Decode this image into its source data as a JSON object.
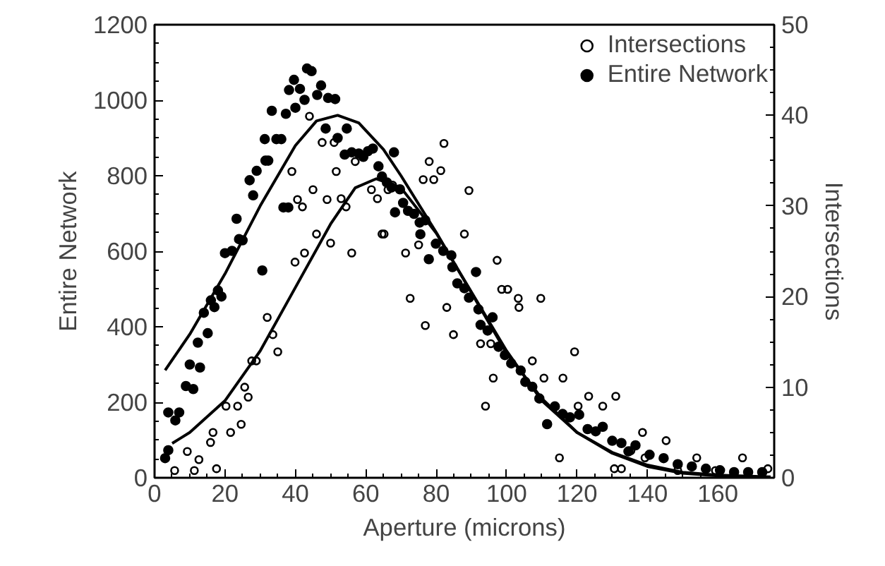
{
  "chart_data": {
    "type": "scatter",
    "xlabel": "Aperture (microns)",
    "ylabel": "Entire Network",
    "y2label": "Intersections",
    "xlim": [
      0,
      176
    ],
    "xticks": [
      0,
      20,
      40,
      60,
      80,
      100,
      120,
      140,
      160
    ],
    "ylim": [
      0,
      1200
    ],
    "yticks": [
      0,
      200,
      400,
      600,
      800,
      1000,
      1200
    ],
    "y2lim": [
      0,
      50
    ],
    "y2ticks": [
      0,
      10,
      20,
      30,
      40,
      50
    ],
    "grid": false,
    "legend": "top right",
    "marker": "circle",
    "series": [
      {
        "name": "Intersections",
        "color": "#000000",
        "axis": "y2",
        "marker": "circle_open",
        "x": [
          5.7,
          9.3,
          11.3,
          12.6,
          15.9,
          17.6,
          16.6,
          20.3,
          23.6,
          21.6,
          24.6,
          25.6,
          26.6,
          27.6,
          28.9,
          32,
          33.6,
          35,
          39.9,
          42.6,
          46,
          50,
          39,
          40.6,
          42,
          45,
          49,
          53,
          54.4,
          56,
          44,
          47.6,
          51,
          51.6,
          57,
          61.6,
          63.3,
          65.2,
          66.3,
          67.6,
          82.2,
          78,
          81.3,
          76.3,
          79.3,
          89.3,
          64.6,
          71.3,
          75,
          88,
          97.3,
          72.6,
          98.6,
          100.3,
          103.3,
          109.7,
          103.5,
          83,
          76.9,
          84.9,
          92.6,
          95.5,
          107.3,
          119.3,
          96.2,
          110.6,
          116,
          94,
          120.3,
          123.3,
          127.3,
          131,
          115,
          130.6,
          132.6,
          138.6,
          145.3,
          139.3,
          154,
          167,
          174.2,
          159.3,
          148.6,
          135.3
        ],
        "values": [
          0.8,
          2.9,
          0.8,
          2.0,
          3.9,
          1.0,
          5.0,
          7.9,
          7.9,
          5.0,
          5.9,
          10.0,
          8.9,
          12.9,
          12.9,
          17.7,
          15.8,
          13.9,
          23.8,
          24.8,
          26.9,
          25.9,
          33.8,
          30.7,
          29.9,
          31.8,
          30.7,
          30.8,
          29.9,
          24.8,
          39.9,
          37.0,
          37.0,
          33.8,
          34.9,
          31.8,
          30.8,
          26.9,
          31.8,
          32.3,
          36.9,
          34.9,
          33.9,
          32.9,
          32.9,
          31.7,
          26.9,
          24.8,
          25.7,
          26.9,
          24.0,
          19.8,
          20.8,
          20.8,
          19.8,
          19.8,
          18.8,
          18.8,
          16.8,
          15.8,
          14.8,
          14.8,
          12.9,
          13.9,
          11.0,
          11.0,
          11.0,
          7.9,
          7.9,
          9.0,
          7.9,
          9.0,
          2.2,
          1.0,
          1.0,
          5.0,
          4.1,
          2.2,
          2.2,
          2.2,
          1.0,
          0.8,
          0.8,
          3.0
        ]
      },
      {
        "name": "Entire Network",
        "color": "#000000",
        "axis": "y",
        "x": [
          3,
          3.9,
          3.9,
          5.9,
          7,
          8.9,
          11,
          10,
          12.9,
          12.3,
          15.1,
          14,
          17,
          16,
          18,
          19,
          20,
          22,
          24,
          25,
          23.3,
          28,
          29,
          27,
          30.6,
          31.5,
          32.3,
          31.3,
          34.6,
          36,
          33.3,
          37.3,
          38.2,
          40,
          41.3,
          42.6,
          39.6,
          43.3,
          44.6,
          46.2,
          47.3,
          49.3,
          51.3,
          36.6,
          38,
          48.6,
          54.6,
          52,
          54,
          56,
          58,
          59.3,
          60.6,
          62,
          63.6,
          64.6,
          66,
          68,
          68.3,
          67.3,
          69.7,
          70.6,
          72,
          73.7,
          75.3,
          75.5,
          76.9,
          77.9,
          79.9,
          82,
          84.3,
          84.6,
          86,
          88,
          89.3,
          91.3,
          92,
          92.6,
          94.6,
          96,
          97.7,
          99.5,
          101.3,
          104,
          105.3,
          107.3,
          109.3,
          111.5,
          113.7,
          115.9,
          118,
          120.6,
          123,
          125.3,
          127.3,
          130,
          132.6,
          134.6,
          136.6,
          140.6,
          144.6,
          148.6,
          152.6,
          156.6,
          160.6,
          164.6,
          168.6,
          172.6
        ],
        "values": [
          52,
          73,
          173,
          152,
          173,
          243,
          235,
          300,
          292,
          358,
          383,
          437,
          452,
          470,
          496,
          480,
          595,
          601,
          632,
          629,
          686,
          748,
          813,
          788,
          549,
          840,
          840,
          897,
          897,
          897,
          972,
          964,
          1027,
          980,
          1030,
          1001,
          1054,
          1084,
          1077,
          1014,
          1039,
          1006,
          1003,
          716,
          716,
          925,
          925,
          900,
          856,
          862,
          859,
          850,
          865,
          872,
          825,
          798,
          782,
          862,
          703,
          769,
          764,
          728,
          707,
          699,
          676,
          645,
          682,
          579,
          620,
          601,
          589,
          558,
          515,
          502,
          477,
          545,
          446,
          405,
          390,
          425,
          347,
          325,
          303,
          284,
          254,
          241,
          210,
          142,
          189,
          169,
          160,
          167,
          129,
          123,
          135,
          98,
          92,
          70,
          86,
          61,
          52,
          36,
          30,
          24,
          20,
          15,
          15,
          15
        ]
      },
      {
        "type": "line",
        "color": "#000000",
        "axis": "y",
        "marker": "none",
        "x": [
          3,
          10,
          20,
          30,
          40,
          46,
          52,
          58,
          65,
          70,
          80,
          90,
          100,
          110,
          120,
          130,
          140,
          150,
          160,
          175
        ],
        "values": [
          285,
          380,
          540,
          720,
          880,
          945,
          960,
          940,
          870,
          800,
          650,
          490,
          330,
          210,
          120,
          65,
          30,
          12,
          5,
          1
        ]
      },
      {
        "type": "line",
        "color": "#000000",
        "axis": "y2",
        "marker": "none",
        "x": [
          5,
          10,
          20,
          30,
          40,
          50,
          57,
          63,
          70,
          80,
          90,
          100,
          110,
          120,
          130,
          140,
          150,
          160,
          175
        ],
        "values": [
          3.8,
          5,
          8.5,
          14,
          21,
          28,
          32,
          33,
          32,
          27,
          20.5,
          14,
          8.5,
          5,
          2.8,
          1.4,
          0.6,
          0.3,
          0.1
        ]
      }
    ]
  }
}
